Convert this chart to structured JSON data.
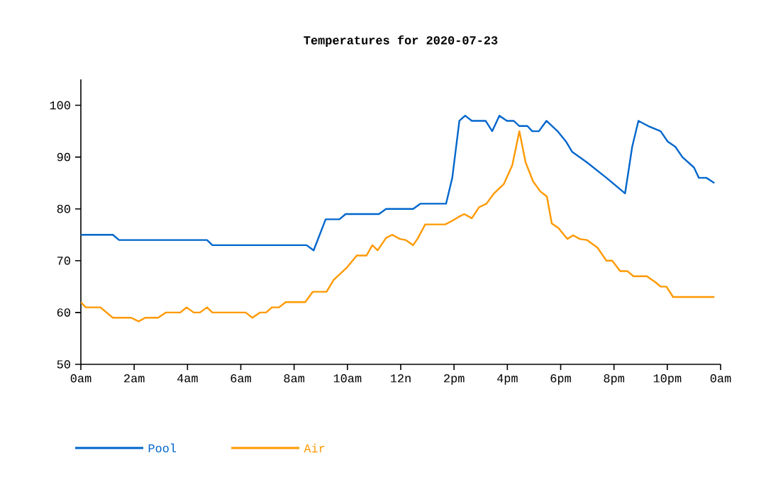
{
  "chart_data": {
    "type": "line",
    "title": "Temperatures for 2020-07-23",
    "xlim": [
      "2020-07-23T00:00",
      "2020-07-24T00:00"
    ],
    "ylim": [
      50,
      105
    ],
    "xticks": [
      {
        "value": "2020-07-23T00:00",
        "label": "0am"
      },
      {
        "value": "2020-07-23T02:00",
        "label": "2am"
      },
      {
        "value": "2020-07-23T04:00",
        "label": "4am"
      },
      {
        "value": "2020-07-23T06:00",
        "label": "6am"
      },
      {
        "value": "2020-07-23T08:00",
        "label": "8am"
      },
      {
        "value": "2020-07-23T10:00",
        "label": "10am"
      },
      {
        "value": "2020-07-23T12:00",
        "label": "12n"
      },
      {
        "value": "2020-07-23T14:00",
        "label": "2pm"
      },
      {
        "value": "2020-07-23T16:00",
        "label": "4pm"
      },
      {
        "value": "2020-07-23T18:00",
        "label": "6pm"
      },
      {
        "value": "2020-07-23T20:00",
        "label": "8pm"
      },
      {
        "value": "2020-07-23T22:00",
        "label": "10pm"
      },
      {
        "value": "2020-07-24T00:00",
        "label": "0am"
      }
    ],
    "yticks": [
      50,
      60,
      70,
      80,
      90,
      100
    ],
    "grid": false,
    "legend": "bottom left",
    "marker": "none",
    "line_style": "solid",
    "series": [
      {
        "name": "Pool",
        "color": "#0066cc",
        "x": [
          "2020-07-23T00:00",
          "2020-07-23T01:12",
          "2020-07-23T01:26",
          "2020-07-23T04:44",
          "2020-07-23T04:56",
          "2020-07-23T08:28",
          "2020-07-23T08:44",
          "2020-07-23T09:11",
          "2020-07-23T09:42",
          "2020-07-23T09:56",
          "2020-07-23T11:11",
          "2020-07-23T11:27",
          "2020-07-23T12:28",
          "2020-07-23T12:44",
          "2020-07-23T13:42",
          "2020-07-23T13:56",
          "2020-07-23T14:12",
          "2020-07-23T14:25",
          "2020-07-23T14:40",
          "2020-07-23T15:11",
          "2020-07-23T15:26",
          "2020-07-23T15:42",
          "2020-07-23T15:59",
          "2020-07-23T16:14",
          "2020-07-23T16:27",
          "2020-07-23T16:45",
          "2020-07-23T16:56",
          "2020-07-23T17:11",
          "2020-07-23T17:28",
          "2020-07-23T17:53",
          "2020-07-23T18:12",
          "2020-07-23T18:26",
          "2020-07-23T18:59",
          "2020-07-23T19:43",
          "2020-07-23T20:25",
          "2020-07-23T20:41",
          "2020-07-23T20:55",
          "2020-07-23T21:17",
          "2020-07-23T21:45",
          "2020-07-23T22:01",
          "2020-07-23T22:18",
          "2020-07-23T22:34",
          "2020-07-23T23:00",
          "2020-07-23T23:11",
          "2020-07-23T23:28",
          "2020-07-23T23:46"
        ],
        "values": [
          75,
          75,
          74,
          74,
          73,
          73,
          72,
          78,
          78,
          79,
          79,
          80,
          80,
          81,
          81,
          86,
          97,
          98,
          97,
          97,
          95,
          98,
          97,
          97,
          96,
          96,
          95,
          95,
          97,
          95,
          93,
          91,
          89,
          86,
          83,
          92,
          97,
          96,
          95,
          93,
          92,
          90,
          88,
          86,
          86,
          85
        ]
      },
      {
        "name": "Air",
        "color": "#ff9900",
        "x": [
          "2020-07-23T00:00",
          "2020-07-23T00:11",
          "2020-07-23T00:44",
          "2020-07-23T01:12",
          "2020-07-23T01:53",
          "2020-07-23T02:10",
          "2020-07-23T02:25",
          "2020-07-23T02:54",
          "2020-07-23T03:11",
          "2020-07-23T03:44",
          "2020-07-23T03:58",
          "2020-07-23T04:14",
          "2020-07-23T04:28",
          "2020-07-23T04:44",
          "2020-07-23T04:56",
          "2020-07-23T06:11",
          "2020-07-23T06:26",
          "2020-07-23T06:43",
          "2020-07-23T06:57",
          "2020-07-23T07:10",
          "2020-07-23T07:26",
          "2020-07-23T07:41",
          "2020-07-23T08:25",
          "2020-07-23T08:42",
          "2020-07-23T09:13",
          "2020-07-23T09:29",
          "2020-07-23T09:59",
          "2020-07-23T10:21",
          "2020-07-23T10:43",
          "2020-07-23T10:56",
          "2020-07-23T11:08",
          "2020-07-23T11:27",
          "2020-07-23T11:41",
          "2020-07-23T11:58",
          "2020-07-23T12:11",
          "2020-07-23T12:28",
          "2020-07-23T12:39",
          "2020-07-23T12:55",
          "2020-07-23T13:40",
          "2020-07-23T13:56",
          "2020-07-23T14:09",
          "2020-07-23T14:23",
          "2020-07-23T14:40",
          "2020-07-23T14:56",
          "2020-07-23T15:13",
          "2020-07-23T15:30",
          "2020-07-23T15:52",
          "2020-07-23T16:11",
          "2020-07-23T16:27",
          "2020-07-23T16:41",
          "2020-07-23T16:58",
          "2020-07-23T17:14",
          "2020-07-23T17:29",
          "2020-07-23T17:40",
          "2020-07-23T17:55",
          "2020-07-23T18:15",
          "2020-07-23T18:28",
          "2020-07-23T18:43",
          "2020-07-23T18:59",
          "2020-07-23T19:23",
          "2020-07-23T19:43",
          "2020-07-23T19:56",
          "2020-07-23T20:14",
          "2020-07-23T20:30",
          "2020-07-23T20:44",
          "2020-07-23T21:14",
          "2020-07-23T21:34",
          "2020-07-23T21:45",
          "2020-07-23T21:58",
          "2020-07-23T22:13",
          "2020-07-23T23:46"
        ],
        "values": [
          62,
          61,
          61,
          59,
          59,
          58.3,
          59,
          59,
          60,
          60,
          61,
          60,
          60,
          61,
          60,
          60,
          59,
          60,
          60,
          61,
          61,
          62,
          62,
          64,
          64,
          66.3,
          68.7,
          71,
          71,
          73,
          72,
          74.4,
          75,
          74.2,
          74,
          73,
          74.4,
          77,
          77,
          77.7,
          78.4,
          79,
          78.2,
          80.3,
          81,
          83,
          84.8,
          88.4,
          95,
          89,
          85.3,
          83.4,
          82.4,
          77.2,
          76.3,
          74.2,
          74.9,
          74.2,
          74,
          72.5,
          70,
          70,
          68,
          68,
          67,
          67,
          65.8,
          65,
          65,
          63,
          63
        ]
      }
    ]
  }
}
